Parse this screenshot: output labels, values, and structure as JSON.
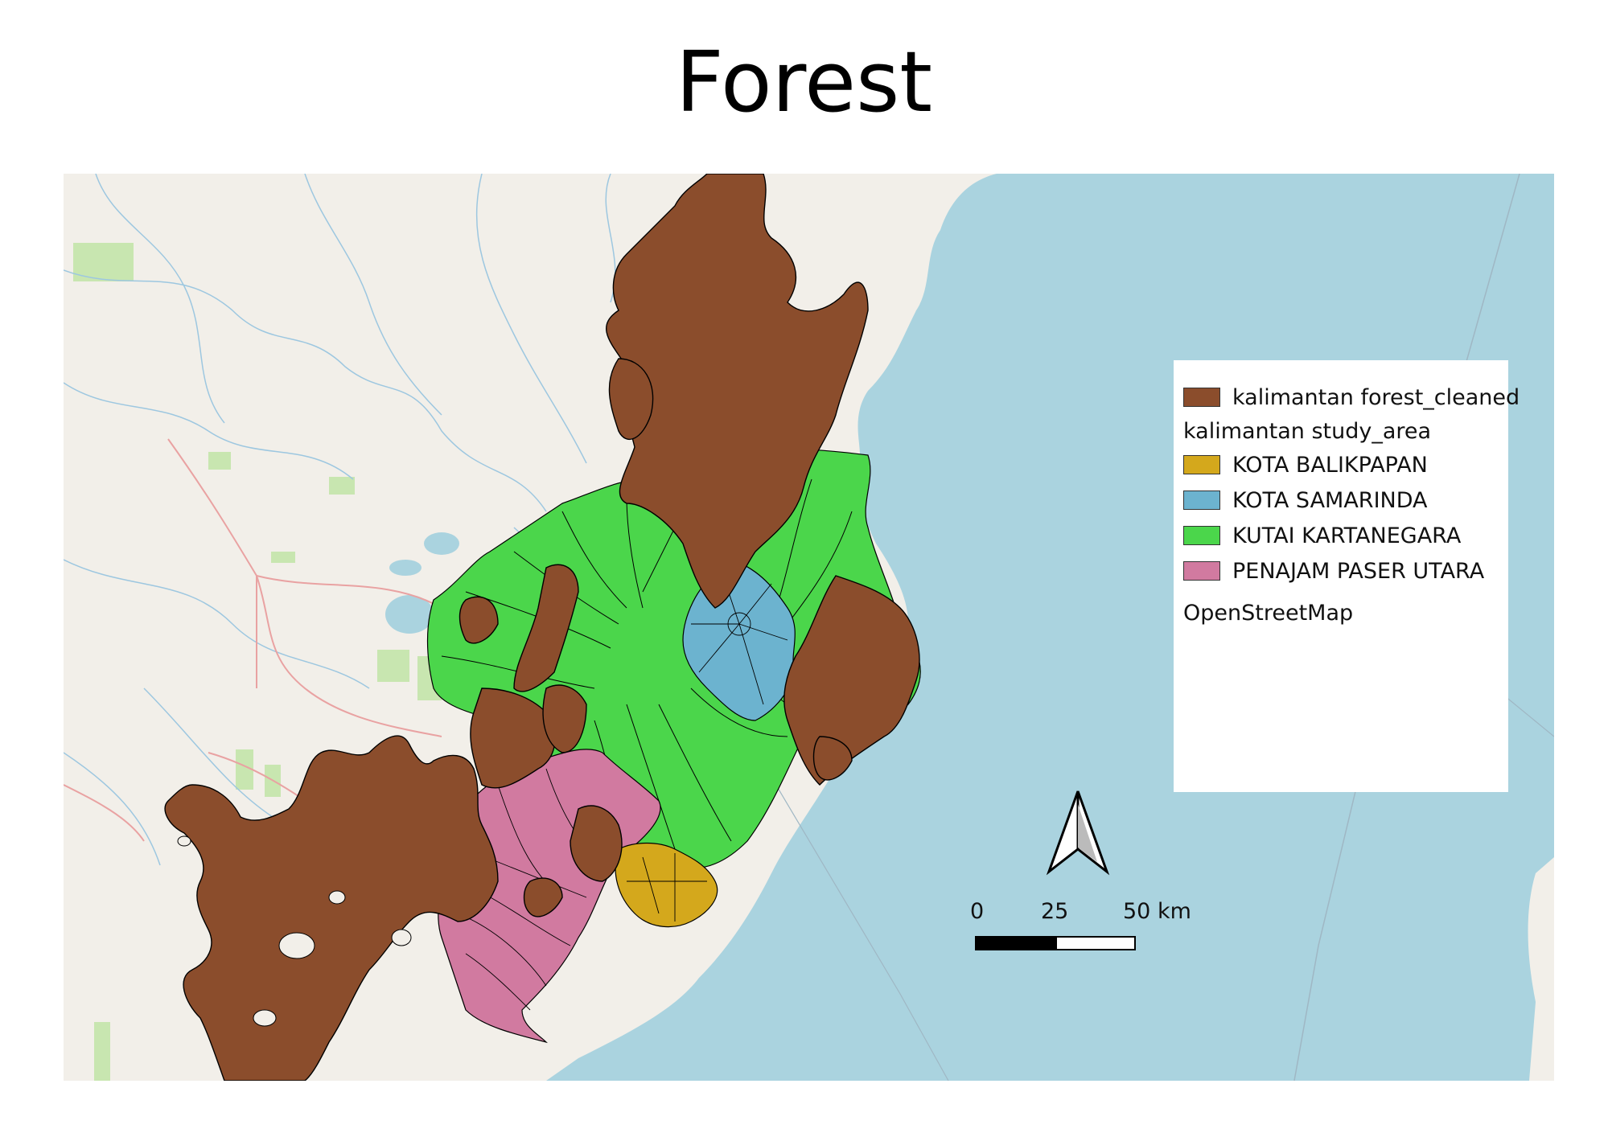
{
  "title": "Forest",
  "colors": {
    "sea": "#aad3df",
    "land": "#f2efe9",
    "forest": "#8b4d2c",
    "kota_balikpapan": "#d4a81c",
    "kota_samarinda": "#6cb3cf",
    "kutai_kartanegara": "#4bd64b",
    "penajam_paser_utara": "#d17aa0",
    "park_green": "#c8e6b0",
    "road_red": "#e9a2a2",
    "water_line": "#9dc7e0"
  },
  "legend": {
    "forest_layer": "kalimantan forest_cleaned",
    "study_area_group": "kalimantan study_area",
    "items": [
      {
        "label": "KOTA BALIKPAPAN",
        "color": "#d4a81c"
      },
      {
        "label": "KOTA SAMARINDA",
        "color": "#6cb3cf"
      },
      {
        "label": "KUTAI KARTANEGARA",
        "color": "#4bd64b"
      },
      {
        "label": "PENAJAM PASER UTARA",
        "color": "#d17aa0"
      }
    ],
    "basemap": "OpenStreetMap"
  },
  "scale_bar": {
    "labels": [
      "0",
      "25",
      "50 km"
    ]
  },
  "north_arrow": "north-arrow-icon"
}
